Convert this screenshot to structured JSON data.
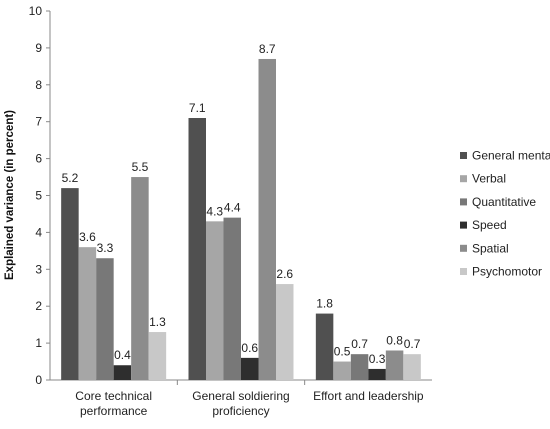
{
  "chart_data": {
    "type": "bar",
    "title": "",
    "xlabel": "",
    "ylabel": "Explained variance (in percent)",
    "ylim": [
      0,
      10
    ],
    "yticks": [
      0,
      1,
      2,
      3,
      4,
      5,
      6,
      7,
      8,
      9,
      10
    ],
    "categories": [
      [
        "Core technical",
        "performance"
      ],
      [
        "General soldiering",
        "proficiency"
      ],
      [
        "Effort and leadership"
      ]
    ],
    "series": [
      {
        "name": "General mental",
        "color": "#505050",
        "values": [
          5.2,
          7.1,
          1.8
        ]
      },
      {
        "name": "Verbal",
        "color": "#a6a6a6",
        "values": [
          3.6,
          4.3,
          0.5
        ]
      },
      {
        "name": "Quantitative",
        "color": "#787878",
        "values": [
          3.3,
          4.4,
          0.7
        ]
      },
      {
        "name": "Speed",
        "color": "#2e2e2e",
        "values": [
          0.4,
          0.6,
          0.3
        ]
      },
      {
        "name": "Spatial",
        "color": "#8c8c8c",
        "values": [
          5.5,
          8.7,
          0.8
        ]
      },
      {
        "name": "Psychomotor",
        "color": "#c8c8c8",
        "values": [
          1.3,
          2.6,
          0.7
        ]
      }
    ],
    "legend": "right",
    "grid": false
  }
}
